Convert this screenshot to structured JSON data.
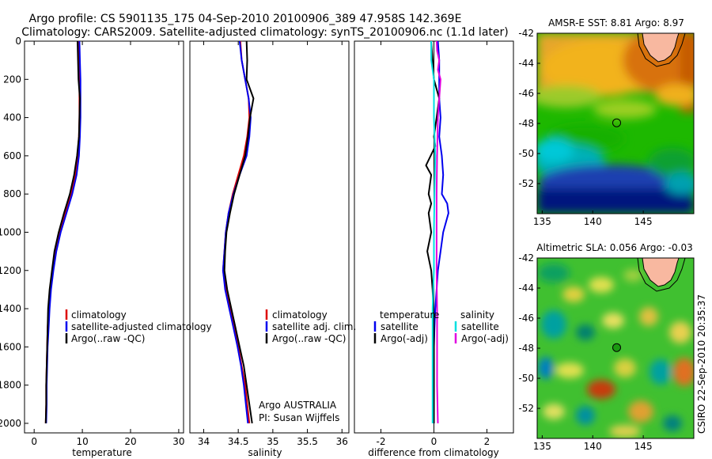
{
  "title_line1": "Argo profile: CS 5901135_175 04-Sep-2010 20100906_389 47.958S 142.369E",
  "title_line2": "Climatology: CARS2009. Satellite-adjusted climatology: synTS_20100906.nc (1.1d later)",
  "side_stamp": "CSIRO 22-Sep-2010 20:35:37",
  "colors": {
    "red": "#dd0000",
    "blue": "#0000ee",
    "black": "#000000",
    "cyan": "#00e0e0",
    "magenta": "#e000e0"
  },
  "chart_data": [
    {
      "type": "line",
      "xlabel": "temperature",
      "xlim": [
        -2,
        31
      ],
      "ylim": [
        0,
        2050
      ],
      "xticks": [
        0,
        10,
        20,
        30
      ],
      "yticks": [
        0,
        200,
        400,
        600,
        800,
        1000,
        1200,
        1400,
        1600,
        1800,
        2000
      ],
      "ytick_labels": [
        "0",
        "200",
        "400",
        "600",
        "800",
        "1000",
        "1200",
        "1400",
        "1600",
        "1800",
        "2000"
      ],
      "legend": [
        "climatology",
        "satellite-adjusted climatology",
        "Argo(..raw -QC)"
      ],
      "series": [
        {
          "name": "climatology",
          "color": "red",
          "points": [
            [
              9.2,
              0
            ],
            [
              9.3,
              100
            ],
            [
              9.4,
              200
            ],
            [
              9.4,
              300
            ],
            [
              9.4,
              400
            ],
            [
              9.3,
              500
            ],
            [
              9.0,
              600
            ],
            [
              8.5,
              700
            ],
            [
              7.6,
              800
            ],
            [
              6.4,
              900
            ],
            [
              5.3,
              1000
            ],
            [
              4.4,
              1100
            ],
            [
              3.8,
              1200
            ],
            [
              3.3,
              1300
            ],
            [
              3.0,
              1400
            ],
            [
              2.8,
              1500
            ],
            [
              2.7,
              1600
            ],
            [
              2.6,
              1700
            ],
            [
              2.5,
              1800
            ],
            [
              2.5,
              1900
            ],
            [
              2.4,
              2000
            ]
          ]
        },
        {
          "name": "satellite-adjusted climatology",
          "color": "blue",
          "points": [
            [
              9.4,
              0
            ],
            [
              9.5,
              100
            ],
            [
              9.6,
              200
            ],
            [
              9.6,
              300
            ],
            [
              9.6,
              400
            ],
            [
              9.5,
              500
            ],
            [
              9.3,
              600
            ],
            [
              8.8,
              700
            ],
            [
              7.9,
              800
            ],
            [
              6.7,
              900
            ],
            [
              5.5,
              1000
            ],
            [
              4.6,
              1100
            ],
            [
              4.0,
              1200
            ],
            [
              3.5,
              1300
            ],
            [
              3.2,
              1400
            ],
            [
              3.0,
              1500
            ],
            [
              2.8,
              1600
            ],
            [
              2.7,
              1700
            ],
            [
              2.6,
              1800
            ],
            [
              2.6,
              1900
            ],
            [
              2.5,
              2000
            ]
          ]
        },
        {
          "name": "Argo(..raw -QC)",
          "color": "black",
          "points": [
            [
              9.0,
              0
            ],
            [
              9.1,
              100
            ],
            [
              9.2,
              200
            ],
            [
              9.5,
              300
            ],
            [
              9.4,
              400
            ],
            [
              9.3,
              500
            ],
            [
              8.9,
              600
            ],
            [
              8.3,
              700
            ],
            [
              7.4,
              800
            ],
            [
              6.2,
              900
            ],
            [
              5.1,
              1000
            ],
            [
              4.2,
              1100
            ],
            [
              3.7,
              1200
            ],
            [
              3.2,
              1300
            ],
            [
              2.9,
              1400
            ],
            [
              2.8,
              1500
            ],
            [
              2.7,
              1600
            ],
            [
              2.6,
              1700
            ],
            [
              2.5,
              1800
            ],
            [
              2.5,
              1900
            ],
            [
              2.4,
              2000
            ]
          ]
        }
      ]
    },
    {
      "type": "line",
      "xlabel": "salinity",
      "xlim": [
        33.8,
        36.1
      ],
      "ylim": [
        0,
        2050
      ],
      "xticks": [
        34,
        34.5,
        35,
        35.5,
        36
      ],
      "legend": [
        "climatology",
        "satellite adj. clim.",
        "Argo(..raw -QC)"
      ],
      "annotation": [
        "Argo AUSTRALIA",
        "PI: Susan Wijffels"
      ],
      "series": [
        {
          "name": "climatology",
          "color": "red",
          "points": [
            [
              34.53,
              0
            ],
            [
              34.55,
              100
            ],
            [
              34.6,
              200
            ],
            [
              34.65,
              300
            ],
            [
              34.66,
              400
            ],
            [
              34.63,
              500
            ],
            [
              34.58,
              600
            ],
            [
              34.5,
              700
            ],
            [
              34.42,
              800
            ],
            [
              34.36,
              900
            ],
            [
              34.32,
              1000
            ],
            [
              34.3,
              1100
            ],
            [
              34.28,
              1200
            ],
            [
              34.32,
              1300
            ],
            [
              34.38,
              1400
            ],
            [
              34.44,
              1500
            ],
            [
              34.5,
              1600
            ],
            [
              34.55,
              1700
            ],
            [
              34.6,
              1800
            ],
            [
              34.63,
              1900
            ],
            [
              34.66,
              2000
            ]
          ]
        },
        {
          "name": "satellite adj. clim.",
          "color": "blue",
          "points": [
            [
              34.52,
              0
            ],
            [
              34.55,
              100
            ],
            [
              34.6,
              200
            ],
            [
              34.65,
              300
            ],
            [
              34.68,
              400
            ],
            [
              34.66,
              500
            ],
            [
              34.62,
              600
            ],
            [
              34.52,
              700
            ],
            [
              34.43,
              800
            ],
            [
              34.36,
              900
            ],
            [
              34.32,
              1000
            ],
            [
              34.3,
              1100
            ],
            [
              34.28,
              1200
            ],
            [
              34.31,
              1300
            ],
            [
              34.37,
              1400
            ],
            [
              34.43,
              1500
            ],
            [
              34.49,
              1600
            ],
            [
              34.54,
              1700
            ],
            [
              34.58,
              1800
            ],
            [
              34.61,
              1900
            ],
            [
              34.64,
              2000
            ]
          ]
        },
        {
          "name": "Argo(..raw -QC)",
          "color": "black",
          "points": [
            [
              34.62,
              0
            ],
            [
              34.63,
              100
            ],
            [
              34.62,
              200
            ],
            [
              34.72,
              300
            ],
            [
              34.67,
              400
            ],
            [
              34.64,
              500
            ],
            [
              34.6,
              600
            ],
            [
              34.52,
              700
            ],
            [
              34.44,
              800
            ],
            [
              34.38,
              900
            ],
            [
              34.33,
              1000
            ],
            [
              34.31,
              1100
            ],
            [
              34.3,
              1200
            ],
            [
              34.34,
              1300
            ],
            [
              34.4,
              1400
            ],
            [
              34.46,
              1500
            ],
            [
              34.52,
              1600
            ],
            [
              34.58,
              1700
            ],
            [
              34.62,
              1800
            ],
            [
              34.66,
              1900
            ],
            [
              34.7,
              2000
            ]
          ]
        }
      ]
    },
    {
      "type": "line",
      "xlabel": "difference from climatology",
      "xlim": [
        -3,
        3
      ],
      "ylim": [
        0,
        2050
      ],
      "xticks": [
        -2,
        0,
        2
      ],
      "legend": {
        "temperature": [
          "temperature",
          "satellite",
          "Argo(-adj)"
        ],
        "salinity": [
          "salinity",
          "satellite",
          "Argo(-adj)"
        ]
      },
      "series": [
        {
          "name": "temperature satellite",
          "color": "blue",
          "points": [
            [
              0.15,
              0
            ],
            [
              0.2,
              100
            ],
            [
              0.2,
              200
            ],
            [
              0.2,
              300
            ],
            [
              0.25,
              400
            ],
            [
              0.2,
              500
            ],
            [
              0.3,
              600
            ],
            [
              0.35,
              700
            ],
            [
              0.3,
              800
            ],
            [
              0.5,
              850
            ],
            [
              0.55,
              900
            ],
            [
              0.35,
              1000
            ],
            [
              0.25,
              1100
            ],
            [
              0.15,
              1200
            ],
            [
              0.1,
              1300
            ],
            [
              0.05,
              1400
            ],
            [
              0.02,
              1500
            ],
            [
              0.0,
              1600
            ],
            [
              0.0,
              1800
            ],
            [
              0.0,
              2000
            ]
          ]
        },
        {
          "name": "temperature Argo(-adj)",
          "color": "black",
          "points": [
            [
              -0.1,
              0
            ],
            [
              -0.05,
              100
            ],
            [
              0.0,
              200
            ],
            [
              0.2,
              300
            ],
            [
              0.1,
              400
            ],
            [
              0.0,
              500
            ],
            [
              0.05,
              550
            ],
            [
              -0.3,
              650
            ],
            [
              -0.1,
              700
            ],
            [
              -0.2,
              800
            ],
            [
              -0.1,
              850
            ],
            [
              -0.2,
              900
            ],
            [
              -0.1,
              1000
            ],
            [
              -0.25,
              1100
            ],
            [
              -0.1,
              1200
            ],
            [
              -0.05,
              1300
            ],
            [
              -0.02,
              1400
            ],
            [
              0.0,
              1500
            ],
            [
              0.0,
              2000
            ]
          ]
        },
        {
          "name": "salinity satellite",
          "color": "cyan",
          "points": [
            [
              -0.1,
              0
            ],
            [
              -0.1,
              100
            ],
            [
              0.0,
              200
            ],
            [
              0.0,
              400
            ],
            [
              0.05,
              600
            ],
            [
              0.02,
              800
            ],
            [
              0.0,
              1000
            ],
            [
              0.0,
              1200
            ],
            [
              -0.05,
              1400
            ],
            [
              -0.05,
              1600
            ],
            [
              -0.05,
              1800
            ],
            [
              -0.05,
              2000
            ]
          ]
        },
        {
          "name": "salinity Argo(-adj)",
          "color": "magenta",
          "points": [
            [
              0.1,
              0
            ],
            [
              0.12,
              50
            ],
            [
              0.2,
              100
            ],
            [
              0.15,
              150
            ],
            [
              0.25,
              200
            ],
            [
              0.2,
              300
            ],
            [
              0.15,
              400
            ],
            [
              0.12,
              600
            ],
            [
              0.1,
              800
            ],
            [
              0.1,
              1000
            ],
            [
              0.1,
              1200
            ],
            [
              0.12,
              1400
            ],
            [
              0.12,
              1600
            ],
            [
              0.12,
              1800
            ],
            [
              0.15,
              2000
            ]
          ]
        }
      ]
    },
    {
      "type": "heatmap",
      "title": "AMSR-E SST: 8.81 Argo: 8.97",
      "xlim": [
        134.5,
        150
      ],
      "ylim": [
        -54,
        -42
      ],
      "xticks": [
        135,
        140,
        145
      ],
      "yticks": [
        -42,
        -44,
        -46,
        -48,
        -50,
        -52
      ],
      "marker": {
        "lon": 142.369,
        "lat": -47.958
      }
    },
    {
      "type": "heatmap",
      "title": "Altimetric SLA: 0.056 Argo: -0.03",
      "xlim": [
        134.5,
        150
      ],
      "ylim": [
        -54,
        -42
      ],
      "xticks": [
        135,
        140,
        145
      ],
      "yticks": [
        -42,
        -44,
        -46,
        -48,
        -50,
        -52
      ],
      "marker": {
        "lon": 142.369,
        "lat": -47.958
      }
    }
  ]
}
